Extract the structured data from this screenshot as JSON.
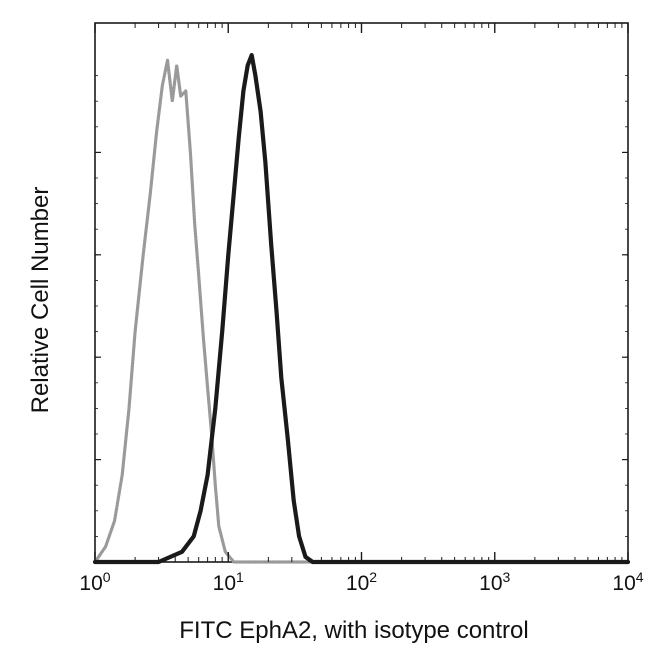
{
  "chart_data": {
    "type": "line",
    "title": "",
    "xlabel": "FITC EphA2, with isotype control",
    "ylabel": "Relative Cell Number",
    "x_scale": "log",
    "xlim": [
      1,
      10000
    ],
    "ylim": [
      0,
      1
    ],
    "x_ticks": [
      {
        "base": "10",
        "exp": "0",
        "value": 1
      },
      {
        "base": "10",
        "exp": "1",
        "value": 10
      },
      {
        "base": "10",
        "exp": "2",
        "value": 100
      },
      {
        "base": "10",
        "exp": "3",
        "value": 1000
      },
      {
        "base": "10",
        "exp": "4",
        "value": 10000
      }
    ],
    "grid": false,
    "legend": "none",
    "series": [
      {
        "color": "#9a9a9a",
        "style": "dotted-gray",
        "x": [
          1.0,
          1.2,
          1.4,
          1.6,
          1.8,
          2.0,
          2.3,
          2.6,
          2.9,
          3.2,
          3.5,
          3.8,
          4.1,
          4.4,
          4.8,
          5.2,
          5.6,
          6.0,
          6.5,
          7.0,
          7.5,
          8.0,
          8.5,
          9.5,
          11.0,
          100,
          1000,
          10000
        ],
        "y": [
          0.0,
          0.03,
          0.08,
          0.17,
          0.3,
          0.45,
          0.6,
          0.72,
          0.84,
          0.93,
          0.98,
          0.9,
          0.97,
          0.91,
          0.92,
          0.8,
          0.66,
          0.56,
          0.44,
          0.34,
          0.25,
          0.15,
          0.07,
          0.02,
          0.0,
          0.0,
          0.0,
          0.0
        ]
      },
      {
        "color": "#1a1a1a",
        "style": "solid-black",
        "x": [
          1.0,
          3.0,
          4.5,
          5.5,
          6.2,
          7.0,
          8.0,
          9.0,
          10.0,
          11.0,
          12.0,
          13.0,
          14.0,
          15.0,
          16.0,
          17.5,
          19.0,
          21.0,
          23.0,
          25.0,
          28.0,
          31.0,
          34.0,
          38.0,
          43.0,
          100,
          1000,
          10000
        ],
        "y": [
          0.0,
          0.0,
          0.02,
          0.05,
          0.1,
          0.17,
          0.3,
          0.45,
          0.6,
          0.72,
          0.83,
          0.92,
          0.97,
          0.99,
          0.95,
          0.88,
          0.78,
          0.62,
          0.49,
          0.36,
          0.24,
          0.12,
          0.05,
          0.01,
          0.0,
          0.0,
          0.0,
          0.0
        ]
      }
    ]
  }
}
